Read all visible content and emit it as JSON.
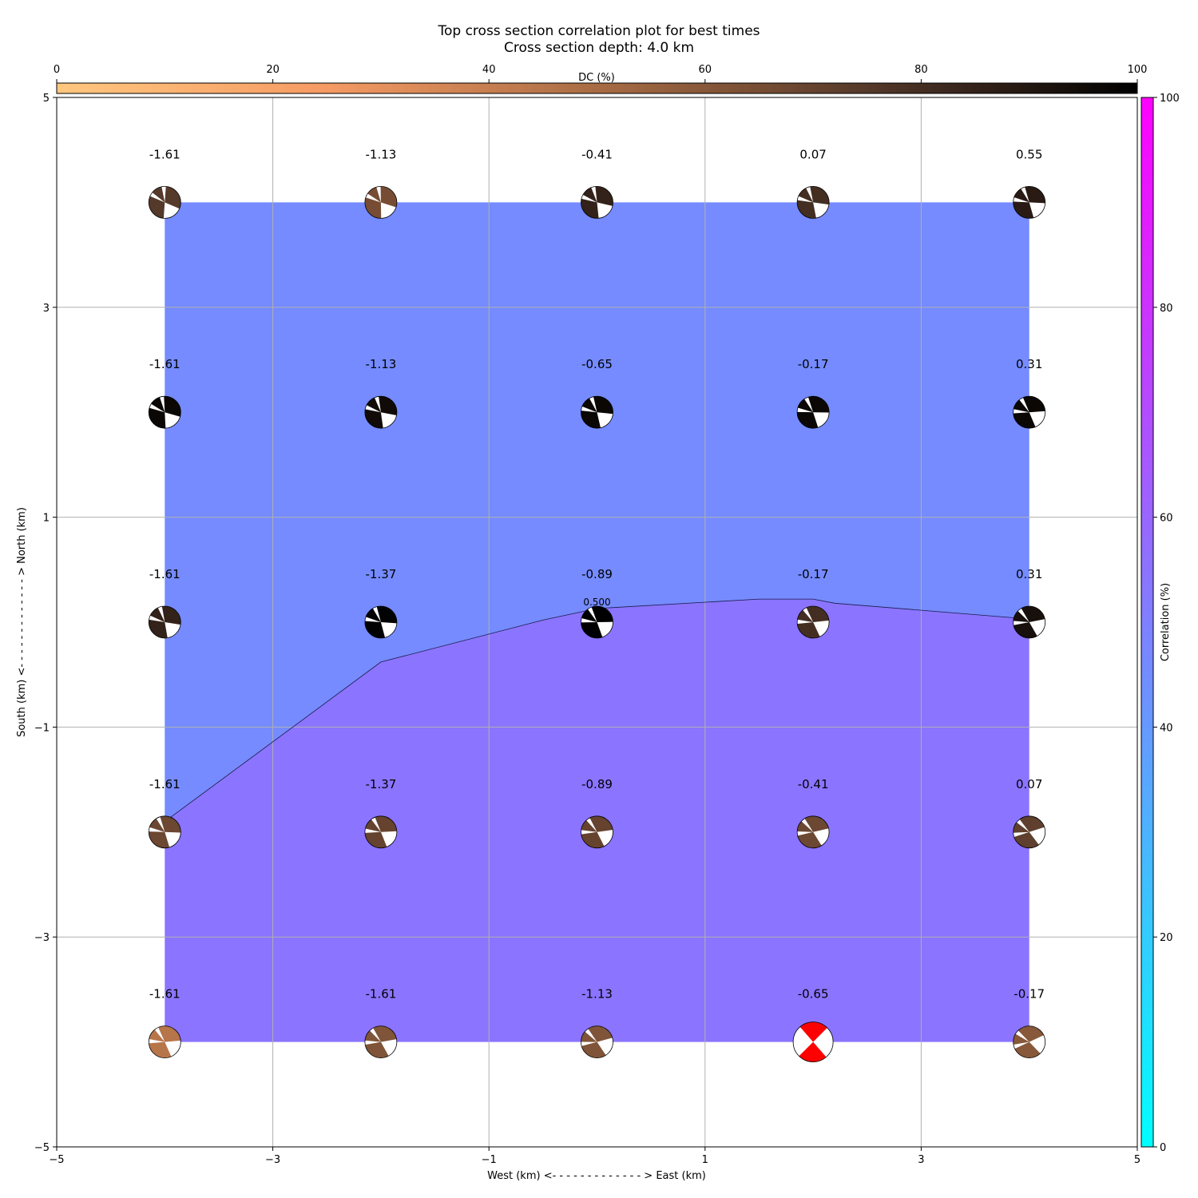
{
  "chart_data": {
    "type": "heatmap",
    "title": "Top cross section correlation plot for best times",
    "subtitle": "Cross section depth: 4.0 km",
    "xlabel": "West (km) <- - - - - - - - - - - - - > East (km)",
    "ylabel": "South (km) <- - - - - - - - - - - - - > North (km)",
    "xlim": [
      -5,
      5
    ],
    "ylim": [
      -5,
      5
    ],
    "x_ticks": [
      -5,
      -3,
      -1,
      1,
      3,
      5
    ],
    "y_ticks": [
      -5,
      -3,
      -1,
      1,
      3,
      5
    ],
    "x_tick_labels": [
      "−5",
      "−3",
      "−1",
      "1",
      "3",
      "5"
    ],
    "y_tick_labels": [
      "−5",
      "−3",
      "−1",
      "1",
      "3",
      "5"
    ],
    "grid": true,
    "x": [
      -4,
      -2,
      0,
      2,
      4
    ],
    "y": [
      4,
      2,
      0,
      -2,
      -4
    ],
    "values": [
      [
        "-1.61",
        "-1.13",
        "-0.41",
        "0.07",
        "0.55"
      ],
      [
        "-1.61",
        "-1.13",
        "-0.65",
        "-0.17",
        "0.31"
      ],
      [
        "-1.61",
        "-1.37",
        "-0.89",
        "-0.17",
        "0.31"
      ],
      [
        "-1.61",
        "-1.37",
        "-0.89",
        "-0.41",
        "0.07"
      ],
      [
        "-1.61",
        "-1.61",
        "-1.13",
        "-0.65",
        "-0.17"
      ]
    ],
    "dc_percent": [
      [
        75,
        65,
        85,
        80,
        88
      ],
      [
        97,
        95,
        97,
        97,
        97
      ],
      [
        85,
        99,
        100,
        80,
        93
      ],
      [
        68,
        70,
        70,
        68,
        72
      ],
      [
        45,
        62,
        62,
        0,
        60
      ]
    ],
    "best_solution": {
      "x": 2,
      "y": -4,
      "color": "#ff0000"
    },
    "contour": {
      "label": "0.500",
      "level_label_position": [
        0,
        0.1
      ],
      "path": [
        [
          -4,
          -1.9
        ],
        [
          -2,
          -0.38
        ],
        [
          -0.5,
          0.02
        ],
        [
          0,
          0.13
        ],
        [
          1.5,
          0.22
        ],
        [
          2,
          0.22
        ],
        [
          2.2,
          0.18
        ],
        [
          4,
          0.03
        ]
      ],
      "fill_above_color": "#758bff",
      "fill_below_color": "#8b74ff"
    },
    "colorbar_dc": {
      "label": "DC (%)",
      "ticks": [
        0,
        20,
        40,
        60,
        80,
        100
      ],
      "colors": [
        "#ffc77f",
        "#000000"
      ],
      "position": "top"
    },
    "colorbar_correlation": {
      "label": "Correlation (%)",
      "ticks": [
        0,
        20,
        40,
        60,
        80,
        100
      ],
      "colors": [
        "#00ffff",
        "#ff00ff"
      ],
      "position": "right"
    }
  }
}
